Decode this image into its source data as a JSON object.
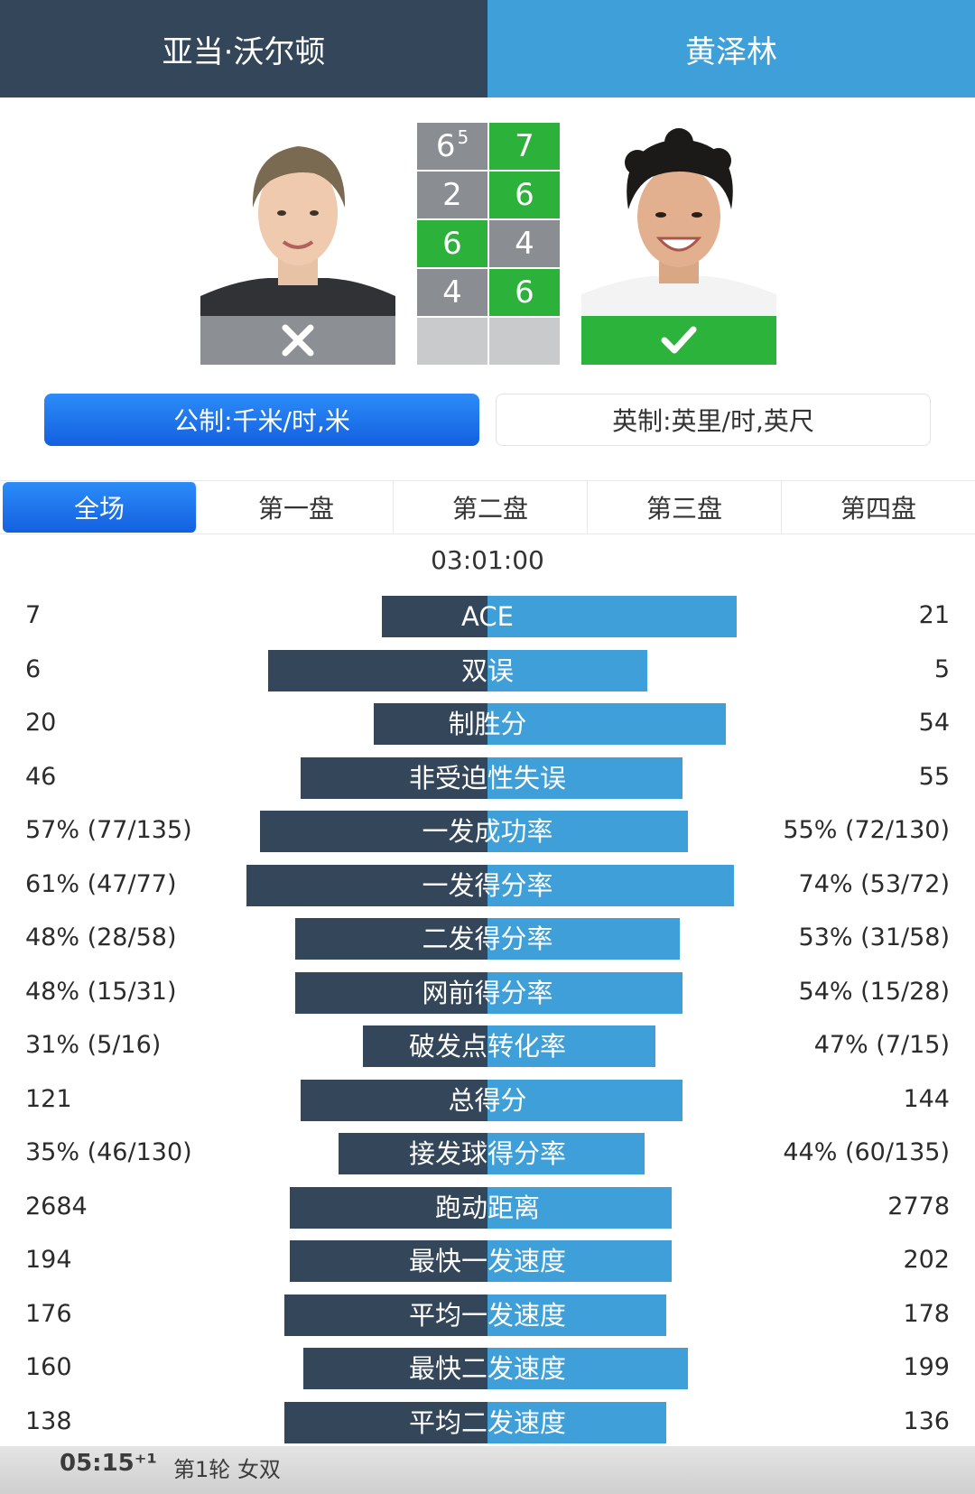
{
  "players": {
    "left": {
      "name": "亚当·沃尔顿",
      "result": "lose",
      "result_icon": "cross-icon"
    },
    "right": {
      "name": "黄泽林",
      "result": "win",
      "result_icon": "check-icon"
    }
  },
  "colors": {
    "left": "#34465a",
    "right": "#3f9fd8",
    "win_cell": "#2cb23a",
    "lose_cell": "#8a8d91",
    "active_tab": "#1e74f0"
  },
  "sets": [
    {
      "left": "6",
      "left_tb": "5",
      "right": "7",
      "winner": "right"
    },
    {
      "left": "2",
      "left_tb": "",
      "right": "6",
      "winner": "right"
    },
    {
      "left": "6",
      "left_tb": "",
      "right": "4",
      "winner": "left"
    },
    {
      "left": "4",
      "left_tb": "",
      "right": "6",
      "winner": "right"
    },
    {
      "left": "",
      "left_tb": "",
      "right": "",
      "winner": "none"
    }
  ],
  "units": {
    "metric": "公制:千米/时,米",
    "imperial": "英制:英里/时,英尺",
    "selected": "metric"
  },
  "tabs": [
    "全场",
    "第一盘",
    "第二盘",
    "第三盘",
    "第四盘"
  ],
  "active_tab": "全场",
  "duration": "03:01:00",
  "stats": [
    {
      "label": "ACE",
      "left": "7",
      "right": "21",
      "lw": 0.39,
      "rw": 0.92
    },
    {
      "label": "双误",
      "left": "6",
      "right": "5",
      "lw": 0.81,
      "rw": 0.59
    },
    {
      "label": "制胜分",
      "left": "20",
      "right": "54",
      "lw": 0.42,
      "rw": 0.88
    },
    {
      "label": "非受迫性失误",
      "left": "46",
      "right": "55",
      "lw": 0.69,
      "rw": 0.72
    },
    {
      "label": "一发成功率",
      "left": "57% (77/135)",
      "right": "55% (72/130)",
      "lw": 0.84,
      "rw": 0.74
    },
    {
      "label": "一发得分率",
      "left": "61% (47/77)",
      "right": "74% (53/72)",
      "lw": 0.89,
      "rw": 0.91
    },
    {
      "label": "二发得分率",
      "left": "48% (28/58)",
      "right": "53% (31/58)",
      "lw": 0.71,
      "rw": 0.71
    },
    {
      "label": "网前得分率",
      "left": "48% (15/31)",
      "right": "54% (15/28)",
      "lw": 0.71,
      "rw": 0.72
    },
    {
      "label": "破发点转化率",
      "left": "31% (5/16)",
      "right": "47% (7/15)",
      "lw": 0.46,
      "rw": 0.62
    },
    {
      "label": "总得分",
      "left": "121",
      "right": "144",
      "lw": 0.69,
      "rw": 0.72
    },
    {
      "label": "接发球得分率",
      "left": "35% (46/130)",
      "right": "44% (60/135)",
      "lw": 0.55,
      "rw": 0.58
    },
    {
      "label": "跑动距离",
      "left": "2684",
      "right": "2778",
      "lw": 0.73,
      "rw": 0.68
    },
    {
      "label": "最快一发速度",
      "left": "194",
      "right": "202",
      "lw": 0.73,
      "rw": 0.68
    },
    {
      "label": "平均一发速度",
      "left": "176",
      "right": "178",
      "lw": 0.75,
      "rw": 0.66
    },
    {
      "label": "最快二发速度",
      "left": "160",
      "right": "199",
      "lw": 0.68,
      "rw": 0.74
    },
    {
      "label": "平均二发速度",
      "left": "138",
      "right": "136",
      "lw": 0.75,
      "rw": 0.66
    }
  ],
  "bottom": {
    "time": "05:15⁺¹",
    "info": "第1轮 女双"
  }
}
